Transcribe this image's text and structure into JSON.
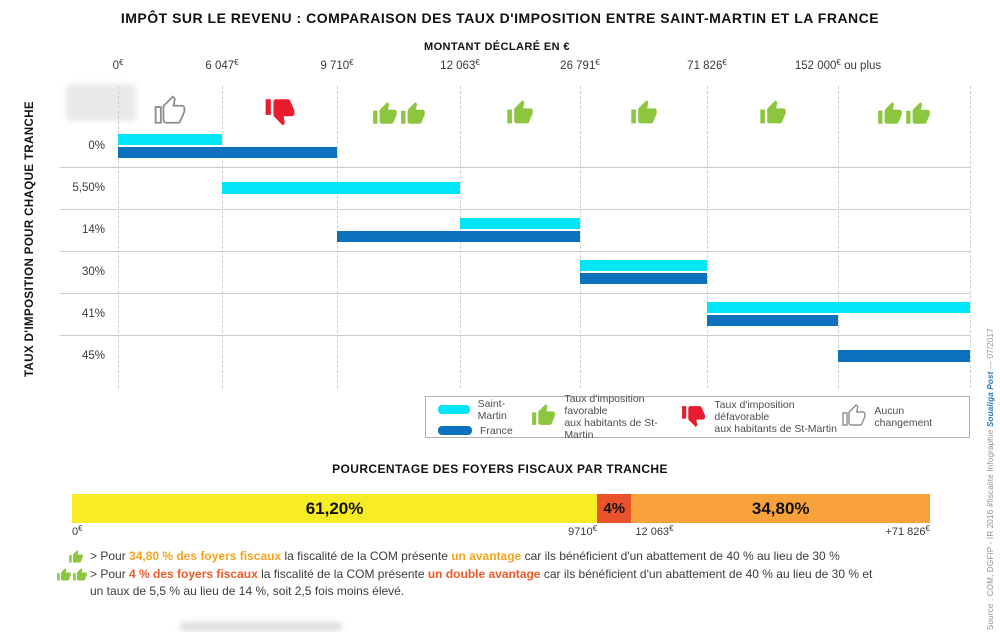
{
  "chart_data": [
    {
      "type": "bar",
      "orientation": "horizontal-range",
      "title": "IMPÔT SUR LE REVENU : COMPARAISON DES TAUX D'IMPOSITION ENTRE SAINT-MARTIN ET LA FRANCE",
      "xlabel": "MONTANT DÉCLARÉ EN €",
      "ylabel": "TAUX D'IMPOSITION POUR CHAQUE TRANCHE",
      "x_ticks": [
        "0€",
        "6 047€",
        "9 710€",
        "12 063€",
        "26 791€",
        "71 826€",
        "152 000€ ou plus"
      ],
      "segment_verdicts": [
        "aucun-changement",
        "defavorable",
        "favorable-double",
        "favorable",
        "favorable",
        "favorable",
        "favorable-double"
      ],
      "rows": [
        {
          "rate": "0%",
          "saint_martin": {
            "from": "0€",
            "to": "6 047€",
            "tick_span": [
              0,
              1
            ]
          },
          "france": {
            "from": "0€",
            "to": "9 710€",
            "tick_span": [
              0,
              2
            ]
          }
        },
        {
          "rate": "5,50%",
          "saint_martin": {
            "from": "6 047€",
            "to": "12 063€",
            "tick_span": [
              1,
              3
            ]
          },
          "france": null
        },
        {
          "rate": "14%",
          "saint_martin": {
            "from": "12 063€",
            "to": "26 791€",
            "tick_span": [
              3,
              4
            ]
          },
          "france": {
            "from": "9 710€",
            "to": "26 791€",
            "tick_span": [
              2,
              4
            ]
          }
        },
        {
          "rate": "30%",
          "saint_martin": {
            "from": "26 791€",
            "to": "71 826€",
            "tick_span": [
              4,
              5
            ]
          },
          "france": {
            "from": "26 791€",
            "to": "71 826€",
            "tick_span": [
              4,
              5
            ]
          }
        },
        {
          "rate": "41%",
          "saint_martin": {
            "from": "71 826€",
            "to": "152 000€ ou plus",
            "tick_span": [
              5,
              7
            ]
          },
          "france": {
            "from": "71 826€",
            "to": "152 000€",
            "tick_span": [
              5,
              6
            ]
          }
        },
        {
          "rate": "45%",
          "saint_martin": null,
          "france": {
            "from": "152 000€",
            "to": "ou plus",
            "tick_span": [
              6,
              7
            ]
          }
        }
      ],
      "series": [
        {
          "name": "Saint-Martin",
          "color": "#00E6F6"
        },
        {
          "name": "France",
          "color": "#0C72BE"
        }
      ]
    },
    {
      "type": "bar",
      "stacked": true,
      "title": "POURCENTAGE DES FOYERS FISCAUX PAR TRANCHE",
      "segments": [
        {
          "label": "61,20%",
          "value": 61.2,
          "color": "#F8EC25",
          "range_from": "0€",
          "range_to": "9710€"
        },
        {
          "label": "4%",
          "value": 4,
          "color": "#E8532C",
          "range_from": "9710€",
          "range_to": "12 063€"
        },
        {
          "label": "34,80%",
          "value": 34.8,
          "color": "#F9A23C",
          "range_from": "12 063€",
          "range_to": "+71 826€"
        }
      ],
      "axis_labels": [
        "0€",
        "9710€",
        "12 063€",
        "+71 826€"
      ]
    }
  ],
  "legend": {
    "saint_martin": "Saint-Martin",
    "france": "France",
    "favorable": "Taux d'imposition favorable\naux habitants de St-Martin",
    "defavorable": "Taux d'imposition défavorable\naux habitants de St-Martin",
    "aucun_changement": "Aucun changement"
  },
  "notes": [
    {
      "icon": "thumbs-up-1",
      "segments": [
        {
          "text": "> Pour ",
          "style": "normal"
        },
        {
          "text": "34,80 % des foyers fiscaux",
          "style": "orange-bold"
        },
        {
          "text": " la fiscalité de la COM présente ",
          "style": "normal"
        },
        {
          "text": "un avantage",
          "style": "orange-bold"
        },
        {
          "text": " car ils bénéficient d'un abattement de 40 % au lieu de 30 %",
          "style": "normal"
        }
      ]
    },
    {
      "icon": "thumbs-up-2",
      "segments": [
        {
          "text": "> Pour ",
          "style": "normal"
        },
        {
          "text": "4 % des foyers fiscaux",
          "style": "red-bold"
        },
        {
          "text": " la fiscalité de la COM présente ",
          "style": "normal"
        },
        {
          "text": "un double avantage",
          "style": "red-bold"
        },
        {
          "text": " car ils bénéficient d'un abattement de 40 % au lieu de 30 % et",
          "style": "normal"
        },
        {
          "text": "un taux de 5,5 % au lieu de 14 %, soit 2,5 fois moins élevé.",
          "style": "normal",
          "break_before": true
        }
      ]
    }
  ],
  "source": {
    "prefix": "Source : COM, DGFIP - IR 2016 #fiscalite     Infographie ",
    "brand": "Soualiga Post",
    "suffix": " — 07/2017"
  },
  "colors": {
    "saint_martin_cyan": "#00E6F6",
    "france_blue": "#0C72BE",
    "thumb_green": "#8CC63F",
    "thumb_red": "#E81C2E",
    "bar_yellow": "#F8EC25",
    "bar_red": "#E8532C",
    "bar_orange": "#F9A23C",
    "text_orange": "#F5A31F",
    "text_red": "#F05A28"
  }
}
